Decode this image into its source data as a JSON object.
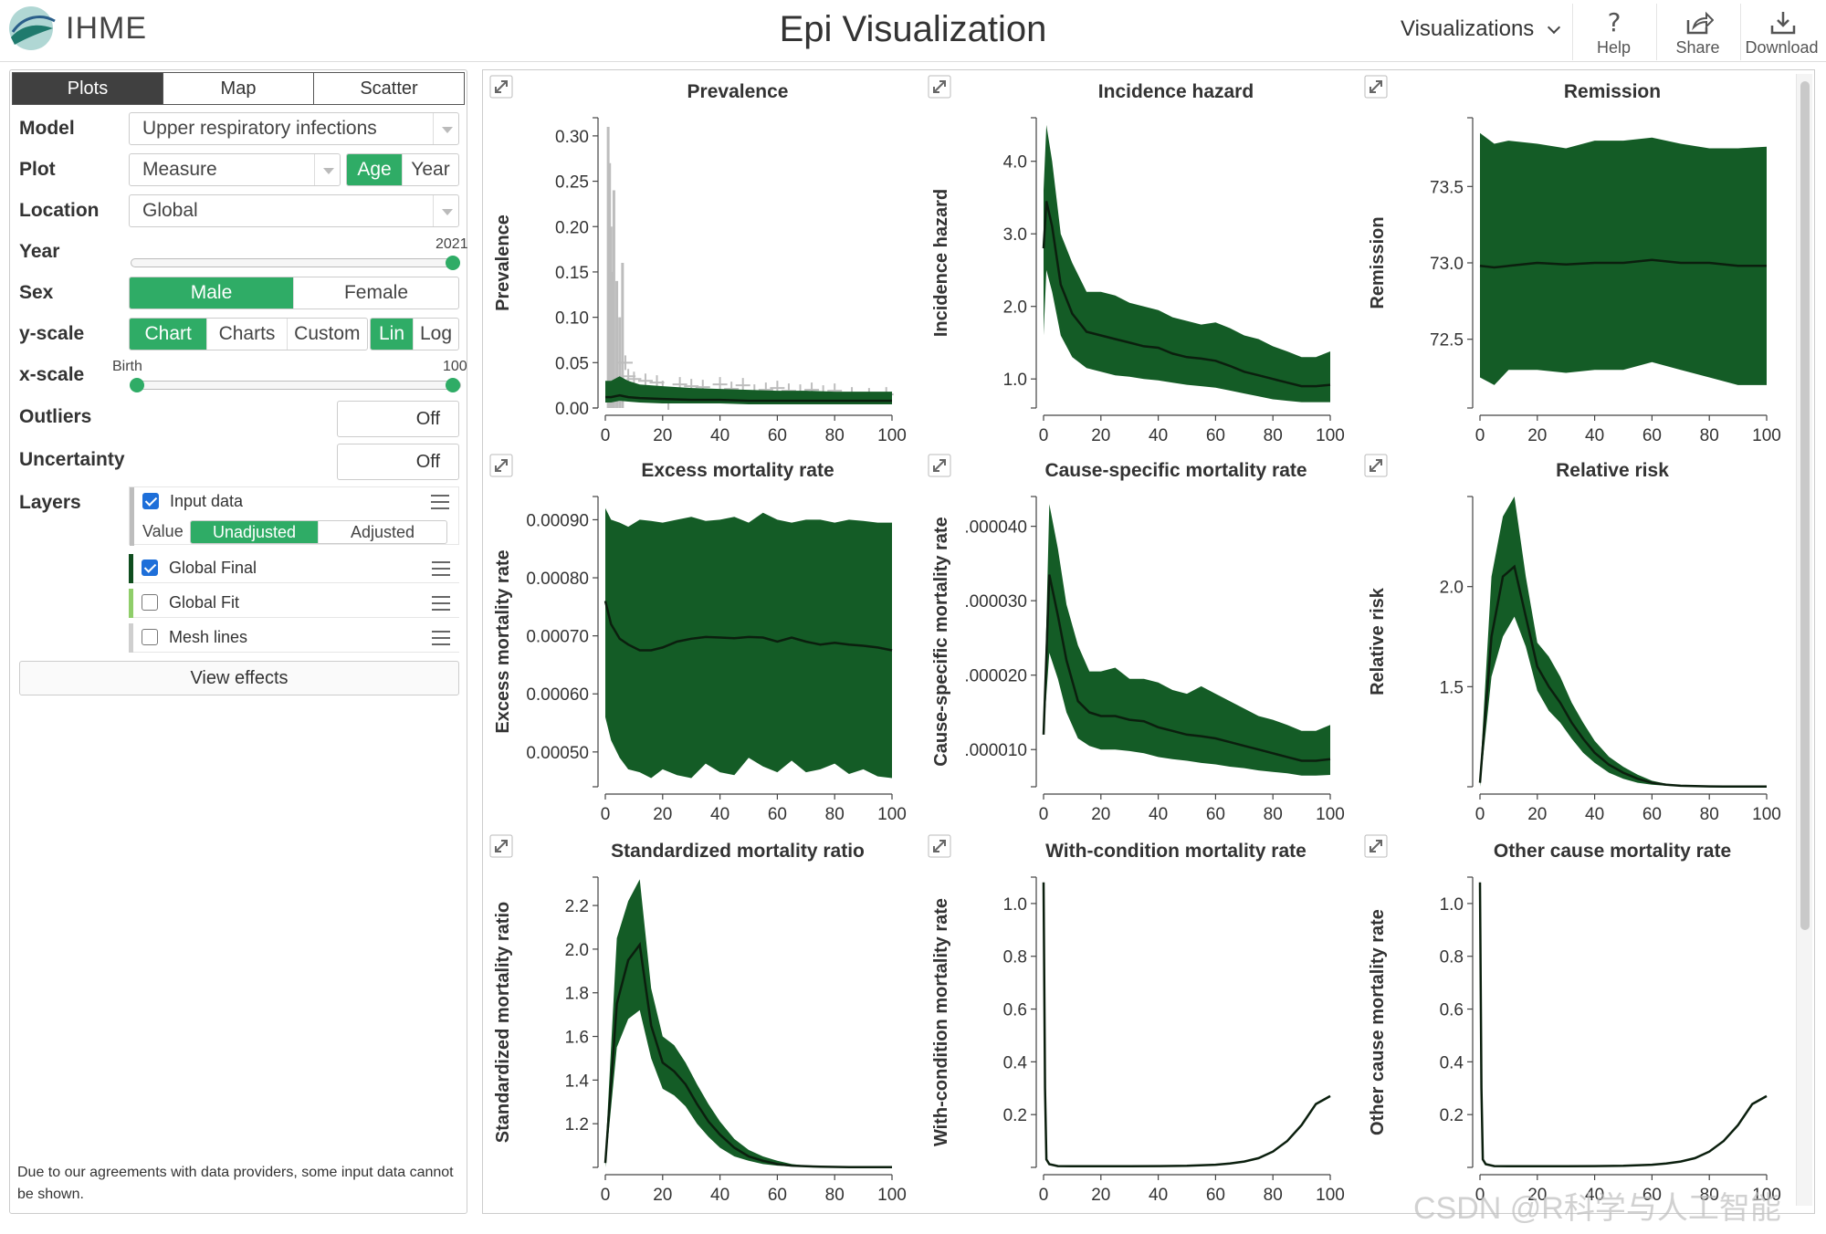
{
  "header": {
    "brand": "IHME",
    "title": "Epi Visualization",
    "visualizations_label": "Visualizations",
    "help_label": "Help",
    "share_label": "Share",
    "download_label": "Download"
  },
  "sidebar": {
    "tabs": [
      {
        "label": "Plots",
        "active": true
      },
      {
        "label": "Map",
        "active": false
      },
      {
        "label": "Scatter",
        "active": false
      }
    ],
    "model": {
      "label": "Model",
      "value": "Upper respiratory infections"
    },
    "plot": {
      "label": "Plot",
      "value": "Measure",
      "options": [
        "Age",
        "Year"
      ],
      "selected": "Age"
    },
    "location": {
      "label": "Location",
      "value": "Global"
    },
    "year": {
      "label": "Year",
      "value": "2021"
    },
    "sex": {
      "label": "Sex",
      "options": [
        "Male",
        "Female"
      ],
      "selected": "Male"
    },
    "yscale": {
      "label": "y-scale",
      "range_options": [
        "Chart",
        "Charts",
        "Custom"
      ],
      "range_selected": "Chart",
      "type_options": [
        "Lin",
        "Log"
      ],
      "type_selected": "Lin"
    },
    "xscale": {
      "label": "x-scale",
      "min_label": "Birth",
      "max_label": "100"
    },
    "outliers": {
      "label": "Outliers",
      "value": "Off"
    },
    "uncertainty": {
      "label": "Uncertainty",
      "value": "Off"
    },
    "layers": {
      "label": "Layers",
      "value_label": "Value",
      "value_options": [
        "Unadjusted",
        "Adjusted"
      ],
      "value_selected": "Unadjusted",
      "items": [
        {
          "name": "Input data",
          "checked": true,
          "color": "#bdbdbd"
        },
        {
          "name": "Global Final",
          "checked": true,
          "color": "#0f4d1e"
        },
        {
          "name": "Global Fit",
          "checked": false,
          "color": "#8fce6a"
        },
        {
          "name": "Mesh lines",
          "checked": false,
          "color": "#cfcfcf"
        }
      ]
    },
    "view_effects_label": "View effects",
    "disclaimer": "Due to our agreements with data providers, some input data cannot be shown."
  },
  "colors": {
    "band": "#145c26",
    "line": "#0b1f0e",
    "accent": "#2fac66",
    "input": "#bdbdbd"
  },
  "chart_data": [
    {
      "type": "area",
      "title": "Prevalence",
      "ylabel": "Prevalence",
      "xlim": [
        0,
        100
      ],
      "ylim": [
        0,
        0.32
      ],
      "yticks": [
        "0.00",
        "0.05",
        "0.10",
        "0.15",
        "0.20",
        "0.25",
        "0.30"
      ],
      "ytick_values": [
        0,
        0.05,
        0.1,
        0.15,
        0.2,
        0.25,
        0.3
      ],
      "x": [
        0,
        2,
        5,
        8,
        12,
        20,
        30,
        40,
        50,
        60,
        70,
        80,
        90,
        100
      ],
      "mean": [
        0.012,
        0.012,
        0.014,
        0.012,
        0.011,
        0.01,
        0.009,
        0.009,
        0.008,
        0.008,
        0.008,
        0.008,
        0.008,
        0.008
      ],
      "lower": [
        0.006,
        0.006,
        0.008,
        0.007,
        0.006,
        0.005,
        0.005,
        0.005,
        0.004,
        0.004,
        0.004,
        0.004,
        0.004,
        0.004
      ],
      "upper": [
        0.03,
        0.03,
        0.035,
        0.03,
        0.026,
        0.024,
        0.022,
        0.021,
        0.02,
        0.019,
        0.019,
        0.018,
        0.018,
        0.018
      ],
      "input_data": [
        [
          1,
          0.31
        ],
        [
          1.5,
          0.27
        ],
        [
          2,
          0.2
        ],
        [
          2.5,
          0.15
        ],
        [
          3,
          0.24
        ],
        [
          4,
          0.14
        ],
        [
          5,
          0.1
        ],
        [
          6,
          0.16
        ],
        [
          7,
          0.05
        ],
        [
          8,
          0.035
        ],
        [
          10,
          0.032
        ],
        [
          14,
          0.03
        ],
        [
          16,
          0.015
        ],
        [
          18,
          0.028
        ],
        [
          20,
          0.022
        ],
        [
          22,
          0.006
        ],
        [
          26,
          0.026
        ],
        [
          30,
          0.024
        ],
        [
          34,
          0.023
        ],
        [
          40,
          0.026
        ],
        [
          44,
          0.021
        ],
        [
          48,
          0.025
        ],
        [
          52,
          0.018
        ],
        [
          56,
          0.02
        ],
        [
          60,
          0.022
        ],
        [
          64,
          0.019
        ],
        [
          68,
          0.018
        ],
        [
          72,
          0.02
        ],
        [
          76,
          0.017
        ],
        [
          80,
          0.019
        ],
        [
          86,
          0.015
        ],
        [
          92,
          0.014
        ],
        [
          98,
          0.015
        ]
      ]
    },
    {
      "type": "area",
      "title": "Incidence hazard",
      "ylabel": "Incidence hazard",
      "xlim": [
        0,
        100
      ],
      "ylim": [
        0.6,
        4.6
      ],
      "yticks": [
        "1.0",
        "2.0",
        "3.0",
        "4.0"
      ],
      "ytick_values": [
        1,
        2,
        3,
        4
      ],
      "x": [
        0,
        1,
        3,
        6,
        10,
        15,
        20,
        25,
        30,
        35,
        40,
        45,
        50,
        55,
        60,
        65,
        70,
        75,
        80,
        85,
        90,
        95,
        100
      ],
      "mean": [
        2.8,
        3.45,
        3.1,
        2.3,
        1.9,
        1.65,
        1.6,
        1.55,
        1.5,
        1.45,
        1.43,
        1.35,
        1.3,
        1.28,
        1.25,
        1.18,
        1.1,
        1.05,
        1.0,
        0.95,
        0.9,
        0.9,
        0.92
      ],
      "lower": [
        1.6,
        2.5,
        2.2,
        1.6,
        1.3,
        1.15,
        1.1,
        1.05,
        1.03,
        1.0,
        0.98,
        0.95,
        0.92,
        0.9,
        0.88,
        0.84,
        0.8,
        0.76,
        0.72,
        0.7,
        0.68,
        0.68,
        0.68
      ],
      "upper": [
        3.6,
        4.5,
        4.0,
        3.0,
        2.6,
        2.2,
        2.2,
        2.15,
        2.05,
        2.0,
        1.95,
        1.85,
        1.8,
        1.75,
        1.78,
        1.7,
        1.6,
        1.55,
        1.45,
        1.38,
        1.3,
        1.3,
        1.38
      ]
    },
    {
      "type": "area",
      "title": "Remission",
      "ylabel": "Remission",
      "xlim": [
        0,
        100
      ],
      "ylim": [
        72.05,
        73.95
      ],
      "yticks": [
        "72.5",
        "73.0",
        "73.5"
      ],
      "ytick_values": [
        72.5,
        73,
        73.5
      ],
      "x": [
        0,
        5,
        10,
        20,
        30,
        40,
        50,
        60,
        70,
        80,
        90,
        100
      ],
      "mean": [
        72.98,
        72.97,
        72.98,
        73.0,
        72.99,
        73.0,
        73.0,
        73.02,
        73.0,
        73.0,
        72.98,
        72.98
      ],
      "lower": [
        72.25,
        72.2,
        72.3,
        72.3,
        72.28,
        72.3,
        72.3,
        72.35,
        72.3,
        72.25,
        72.2,
        72.2
      ],
      "upper": [
        73.85,
        73.78,
        73.8,
        73.78,
        73.75,
        73.8,
        73.8,
        73.82,
        73.78,
        73.75,
        73.75,
        73.76
      ]
    },
    {
      "type": "area",
      "title": "Excess mortality rate",
      "ylabel": "Excess mortality rate",
      "xlim": [
        0,
        100
      ],
      "ylim": [
        0.00044,
        0.00094
      ],
      "yticks": [
        "0.00050",
        "0.00060",
        "0.00070",
        "0.00080",
        "0.00090"
      ],
      "ytick_values": [
        0.0005,
        0.0006,
        0.0007,
        0.0008,
        0.0009
      ],
      "x": [
        0,
        2,
        5,
        8,
        12,
        16,
        20,
        25,
        30,
        35,
        40,
        45,
        50,
        55,
        60,
        65,
        70,
        75,
        80,
        85,
        90,
        95,
        100
      ],
      "mean": [
        0.00076,
        0.00072,
        0.000695,
        0.000685,
        0.000675,
        0.000675,
        0.00068,
        0.00069,
        0.000695,
        0.000698,
        0.000697,
        0.000696,
        0.000698,
        0.000697,
        0.00069,
        0.000697,
        0.00069,
        0.000685,
        0.000688,
        0.000685,
        0.000683,
        0.00068,
        0.000675
      ],
      "lower": [
        0.00056,
        0.00052,
        0.00049,
        0.00047,
        0.000465,
        0.000455,
        0.00047,
        0.00046,
        0.000455,
        0.00048,
        0.000465,
        0.00046,
        0.00049,
        0.000475,
        0.000465,
        0.000485,
        0.000465,
        0.00047,
        0.00048,
        0.000462,
        0.00047,
        0.000458,
        0.000455
      ],
      "upper": [
        0.00092,
        0.0009,
        0.000895,
        0.000888,
        0.0009,
        0.000898,
        0.000895,
        0.0009,
        0.000905,
        0.000898,
        0.0009,
        0.000905,
        0.000895,
        0.000912,
        0.0009,
        0.000895,
        0.0009,
        0.0009,
        0.000895,
        0.0009,
        0.000898,
        0.000895,
        0.000895
      ]
    },
    {
      "type": "area",
      "title": "Cause-specific mortality rate",
      "ylabel": "Cause-specific mortality rate",
      "xlim": [
        0,
        100
      ],
      "ylim": [
        5e-06,
        4.4e-05
      ],
      "yticks": [
        ".000010",
        ".000020",
        ".000030",
        ".000040"
      ],
      "ytick_values": [
        1e-05,
        2e-05,
        3e-05,
        4e-05
      ],
      "x": [
        0,
        2,
        5,
        8,
        12,
        16,
        20,
        25,
        30,
        35,
        40,
        45,
        50,
        55,
        60,
        65,
        70,
        75,
        80,
        85,
        90,
        95,
        100
      ],
      "mean": [
        1.2e-05,
        3.35e-05,
        2.8e-05,
        2.2e-05,
        1.65e-05,
        1.5e-05,
        1.45e-05,
        1.45e-05,
        1.4e-05,
        1.38e-05,
        1.3e-05,
        1.25e-05,
        1.2e-05,
        1.18e-05,
        1.15e-05,
        1.1e-05,
        1.05e-05,
        1e-05,
        9.5e-06,
        9e-06,
        8.5e-06,
        8.5e-06,
        8.7e-06
      ],
      "lower": [
        1.2e-05,
        2.3e-05,
        1.95e-05,
        1.5e-05,
        1.15e-05,
        1.05e-05,
        1e-05,
        1e-05,
        9.8e-06,
        9.5e-06,
        9e-06,
        8.7e-06,
        8.5e-06,
        8.2e-06,
        8e-06,
        7.7e-06,
        7.5e-06,
        7.2e-06,
        7e-06,
        6.8e-06,
        6.5e-06,
        6.5e-06,
        6.6e-06
      ],
      "upper": [
        1.2e-05,
        4.3e-05,
        3.7e-05,
        2.95e-05,
        2.4e-05,
        2.05e-05,
        2.05e-05,
        2.1e-05,
        1.95e-05,
        1.95e-05,
        1.9e-05,
        1.8e-05,
        1.75e-05,
        1.85e-05,
        1.75e-05,
        1.65e-05,
        1.55e-05,
        1.45e-05,
        1.4e-05,
        1.33e-05,
        1.25e-05,
        1.25e-05,
        1.33e-05
      ]
    },
    {
      "type": "area",
      "title": "Relative risk",
      "ylabel": "Relative risk",
      "xlim": [
        0,
        100
      ],
      "ylim": [
        1.0,
        2.45
      ],
      "yticks": [
        "1.5",
        "2.0"
      ],
      "ytick_values": [
        1.5,
        2.0
      ],
      "x": [
        0,
        4,
        8,
        12,
        16,
        20,
        24,
        28,
        32,
        36,
        40,
        45,
        50,
        55,
        60,
        65,
        70,
        75,
        80,
        85,
        90,
        95,
        100
      ],
      "mean": [
        1.02,
        1.75,
        2.05,
        2.1,
        1.85,
        1.6,
        1.5,
        1.42,
        1.32,
        1.24,
        1.17,
        1.11,
        1.07,
        1.04,
        1.02,
        1.01,
        1.005,
        1.003,
        1.002,
        1.001,
        1.001,
        1.001,
        1.001
      ],
      "lower": [
        1.0,
        1.55,
        1.75,
        1.85,
        1.7,
        1.48,
        1.38,
        1.32,
        1.24,
        1.17,
        1.12,
        1.07,
        1.04,
        1.02,
        1.01,
        1.005,
        1.002,
        1.001,
        1.0,
        1.0,
        1.0,
        1.0,
        1.0
      ],
      "upper": [
        1.05,
        2.05,
        2.35,
        2.45,
        2.05,
        1.72,
        1.65,
        1.55,
        1.42,
        1.32,
        1.23,
        1.15,
        1.1,
        1.06,
        1.03,
        1.015,
        1.008,
        1.005,
        1.003,
        1.002,
        1.002,
        1.002,
        1.002
      ]
    },
    {
      "type": "area",
      "title": "Standardized mortality ratio",
      "ylabel": "Standardized mortality ratio",
      "xlim": [
        0,
        100
      ],
      "ylim": [
        1.0,
        2.33
      ],
      "yticks": [
        "1.2",
        "1.4",
        "1.6",
        "1.8",
        "2.0",
        "2.2"
      ],
      "ytick_values": [
        1.2,
        1.4,
        1.6,
        1.8,
        2.0,
        2.2
      ],
      "x": [
        0,
        4,
        8,
        12,
        16,
        20,
        24,
        28,
        32,
        36,
        40,
        45,
        50,
        55,
        60,
        65,
        70,
        75,
        80,
        85,
        90,
        95,
        100
      ],
      "mean": [
        1.02,
        1.75,
        1.95,
        2.02,
        1.65,
        1.48,
        1.44,
        1.38,
        1.29,
        1.21,
        1.15,
        1.09,
        1.05,
        1.03,
        1.015,
        1.008,
        1.005,
        1.003,
        1.002,
        1.001,
        1.001,
        1.001,
        1.001
      ],
      "lower": [
        1.0,
        1.55,
        1.68,
        1.72,
        1.5,
        1.36,
        1.33,
        1.28,
        1.2,
        1.14,
        1.09,
        1.05,
        1.03,
        1.015,
        1.008,
        1.004,
        1.002,
        1.001,
        1.0,
        1.0,
        1.0,
        1.0,
        1.0
      ],
      "upper": [
        1.05,
        2.05,
        2.22,
        2.32,
        1.82,
        1.6,
        1.56,
        1.48,
        1.38,
        1.29,
        1.21,
        1.13,
        1.08,
        1.05,
        1.03,
        1.015,
        1.008,
        1.005,
        1.003,
        1.002,
        1.002,
        1.002,
        1.002
      ]
    },
    {
      "type": "line",
      "title": "With-condition mortality rate",
      "ylabel": "With-condition mortality rate",
      "xlim": [
        0,
        100
      ],
      "ylim": [
        0,
        1.1
      ],
      "yticks": [
        "0.2",
        "0.4",
        "0.6",
        "0.8",
        "1.0"
      ],
      "ytick_values": [
        0.2,
        0.4,
        0.6,
        0.8,
        1.0
      ],
      "x": [
        0,
        0.5,
        1,
        2,
        5,
        10,
        20,
        30,
        40,
        50,
        60,
        65,
        70,
        75,
        80,
        85,
        90,
        95,
        100
      ],
      "mean": [
        1.08,
        0.3,
        0.03,
        0.012,
        0.005,
        0.004,
        0.004,
        0.004,
        0.005,
        0.006,
        0.01,
        0.015,
        0.022,
        0.035,
        0.06,
        0.1,
        0.16,
        0.24,
        0.27
      ]
    },
    {
      "type": "line",
      "title": "Other cause mortality rate",
      "ylabel": "Other cause mortality rate",
      "xlim": [
        0,
        100
      ],
      "ylim": [
        0,
        1.1
      ],
      "yticks": [
        "0.2",
        "0.4",
        "0.6",
        "0.8",
        "1.0"
      ],
      "ytick_values": [
        0.2,
        0.4,
        0.6,
        0.8,
        1.0
      ],
      "x": [
        0,
        0.5,
        1,
        2,
        5,
        10,
        20,
        30,
        40,
        50,
        60,
        65,
        70,
        75,
        80,
        85,
        90,
        95,
        100
      ],
      "mean": [
        1.08,
        0.3,
        0.03,
        0.012,
        0.005,
        0.004,
        0.004,
        0.004,
        0.005,
        0.006,
        0.01,
        0.015,
        0.022,
        0.035,
        0.06,
        0.1,
        0.16,
        0.24,
        0.27
      ]
    }
  ],
  "xticks": [
    "0",
    "20",
    "40",
    "60",
    "80",
    "100"
  ],
  "watermark": "CSDN @R科学与人工智能"
}
